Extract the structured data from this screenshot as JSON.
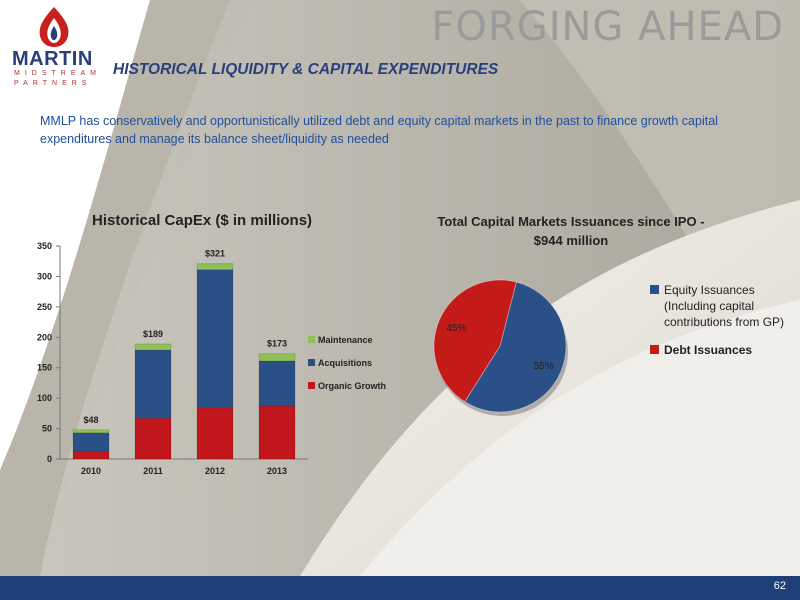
{
  "header": {
    "slide_title": "FORGING AHEAD",
    "section_title": "HISTORICAL LIQUIDITY & CAPITAL EXPENDITURES"
  },
  "logo": {
    "word": "MARTIN",
    "sub1": "MIDSTREAM",
    "sub2": "PARTNERS"
  },
  "intro": "MMLP has conservatively and opportunistically utilized debt and equity capital markets in the past to finance growth capital expenditures and manage its balance sheet/liquidity as needed",
  "colors": {
    "navy": "#1e3f78",
    "title_blue": "#2a3f7a",
    "text_blue": "#1f4e9a",
    "maintenance": "#8fbf5a",
    "acquisitions": "#2b4f87",
    "organic": "#c0161c",
    "equity": "#2b4f87",
    "debt": "#c41a1a"
  },
  "chart_data": [
    {
      "type": "bar",
      "stacked": true,
      "title": "Historical CapEx ($ in millions)",
      "categories": [
        "2010",
        "2011",
        "2012",
        "2013"
      ],
      "ylim": [
        0,
        350
      ],
      "yticks": [
        0,
        50,
        100,
        150,
        200,
        250,
        300,
        350
      ],
      "series": [
        {
          "name": "Organic Growth",
          "color": "#c0161c",
          "values": [
            13,
            67,
            84,
            87
          ]
        },
        {
          "name": "Acquisitions",
          "color": "#2b4f87",
          "values": [
            30,
            112,
            227,
            74
          ]
        },
        {
          "name": "Maintenance",
          "color": "#8fbf5a",
          "values": [
            5,
            10,
            10,
            12
          ]
        }
      ],
      "data_labels": [
        "$48",
        "$189",
        "$321",
        "$173"
      ],
      "legend_position": "right",
      "grid": false
    },
    {
      "type": "pie",
      "title": "Total Capital Markets Issuances since IPO - $944 million",
      "title_lines": [
        "Total Capital Markets Issuances since IPO -",
        "$944 million"
      ],
      "slices": [
        {
          "name": "Equity Issuances (Including capital contributions from GP)",
          "value": 55,
          "label": "55%",
          "color": "#2b4f87"
        },
        {
          "name": "Debt Issuances",
          "value": 45,
          "label": "45%",
          "color": "#c41a1a"
        }
      ],
      "legend_position": "right"
    }
  ],
  "footer": {
    "page_number": "62"
  }
}
